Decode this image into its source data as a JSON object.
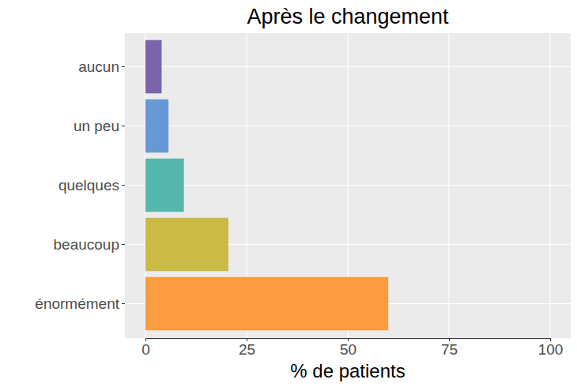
{
  "chart_data": {
    "type": "bar",
    "title": "Après le changement",
    "orientation": "horizontal",
    "categories": [
      "aucun",
      "un peu",
      "quelques",
      "beaucoup",
      "énormément"
    ],
    "values": [
      4,
      5.7,
      9.5,
      20.5,
      60
    ],
    "colors": [
      "#7b64ac",
      "#6699d3",
      "#56b8ac",
      "#cbbb44",
      "#fd9b40"
    ],
    "xlabel": "% de patients",
    "xlim": [
      0,
      100
    ],
    "xticks": [
      0,
      25,
      50,
      75,
      100
    ],
    "grid": true
  }
}
